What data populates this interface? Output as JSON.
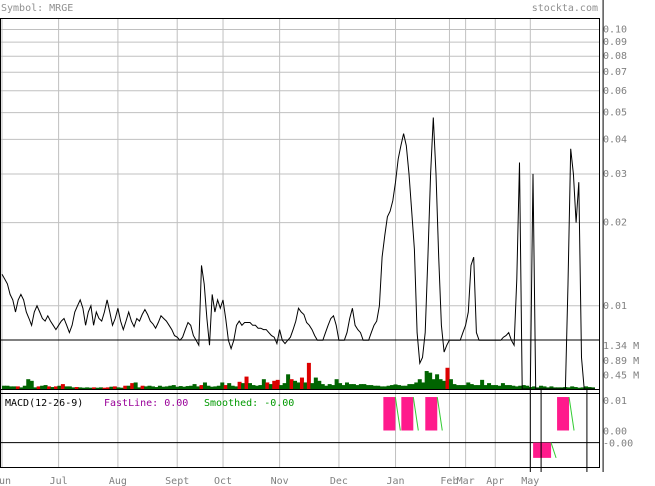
{
  "header": {
    "symbol_text": "Symbol: MRGE",
    "site_text": "stockta.com"
  },
  "colors": {
    "header_text": "#909090",
    "grid": "#c0c0c0",
    "frame": "#000000",
    "price_line": "#000000",
    "volume_up": "#006400",
    "volume_down": "#dd0000",
    "macd_fill": "#ff1a8c",
    "fast_label": "#990099",
    "smoothed_label": "#009900",
    "smoothed_line": "#33cc33"
  },
  "chart_data": [
    {
      "type": "line",
      "title": "",
      "yscale": "log",
      "ylim": [
        0.005,
        0.11
      ],
      "y_ticks": [
        "0.10",
        "0.09",
        "0.08",
        "0.07",
        "0.06",
        "0.05",
        "0.04",
        "0.03",
        "0.02",
        "0.01"
      ],
      "y_tick_values": [
        0.1,
        0.09,
        0.08,
        0.07,
        0.06,
        0.05,
        0.04,
        0.03,
        0.02,
        0.01
      ],
      "x_ticks": [
        "Jun",
        "Jul",
        "Aug",
        "Sept",
        "Oct",
        "Nov",
        "Dec",
        "Jan",
        "Feb",
        "Mar",
        "Apr",
        "May"
      ],
      "x_tick_positions": [
        0,
        21,
        43,
        65,
        82,
        103,
        125,
        146,
        166,
        172,
        183,
        196
      ],
      "grid": true,
      "series": [
        {
          "values": [
            0.013,
            0.0125,
            0.012,
            0.011,
            0.0105,
            0.0095,
            0.0105,
            0.011,
            0.0105,
            0.0095,
            0.009,
            0.0085,
            0.0095,
            0.01,
            0.0095,
            0.009,
            0.0088,
            0.0092,
            0.0088,
            0.0085,
            0.0082,
            0.0085,
            0.0088,
            0.009,
            0.0085,
            0.008,
            0.0085,
            0.0095,
            0.01,
            0.0105,
            0.0098,
            0.0085,
            0.0095,
            0.01,
            0.0085,
            0.0095,
            0.009,
            0.0088,
            0.0095,
            0.0105,
            0.0095,
            0.0085,
            0.009,
            0.0098,
            0.0088,
            0.0082,
            0.0088,
            0.0095,
            0.0088,
            0.0084,
            0.009,
            0.0088,
            0.0093,
            0.0097,
            0.0093,
            0.0088,
            0.0086,
            0.0083,
            0.0087,
            0.0092,
            0.009,
            0.0088,
            0.0085,
            0.0082,
            0.0078,
            0.0077,
            0.0075,
            0.0077,
            0.0082,
            0.0087,
            0.0085,
            0.0078,
            0.0075,
            0.0072,
            0.014,
            0.012,
            0.009,
            0.0072,
            0.011,
            0.0095,
            0.0105,
            0.0098,
            0.0105,
            0.009,
            0.0075,
            0.007,
            0.0075,
            0.0085,
            0.0088,
            0.0085,
            0.0087,
            0.0087,
            0.0087,
            0.0085,
            0.0085,
            0.0083,
            0.0083,
            0.0082,
            0.0082,
            0.008,
            0.0078,
            0.0077,
            0.0073,
            0.0082,
            0.0075,
            0.0073,
            0.0075,
            0.0077,
            0.0082,
            0.0088,
            0.0098,
            0.0095,
            0.0093,
            0.0087,
            0.0085,
            0.0082,
            0.0078,
            0.0075,
            0.0075,
            0.0075,
            0.008,
            0.0085,
            0.009,
            0.0092,
            0.0085,
            0.0075,
            0.0075,
            0.0075,
            0.008,
            0.009,
            0.0098,
            0.0085,
            0.0082,
            0.008,
            0.0075,
            0.0075,
            0.0075,
            0.008,
            0.0085,
            0.0088,
            0.01,
            0.015,
            0.018,
            0.021,
            0.022,
            0.024,
            0.028,
            0.034,
            0.038,
            0.042,
            0.038,
            0.03,
            0.022,
            0.016,
            0.008,
            0.0062,
            0.0065,
            0.008,
            0.015,
            0.03,
            0.048,
            0.03,
            0.015,
            0.0085,
            0.0068,
            0.0072,
            0.0075,
            0.0075,
            0.0075,
            0.0075,
            0.0075,
            0.008,
            0.0085,
            0.0095,
            0.014,
            0.015,
            0.008,
            0.0075,
            0.0075,
            0.0075,
            0.0075,
            0.0075,
            0.0075,
            0.0075,
            0.0075,
            0.0075,
            0.0077,
            0.0078,
            0.008,
            0.0075,
            0.0072,
            0.0125,
            0.033,
            0.005,
            0.005,
            0.005,
            0.005,
            0.03,
            0.005,
            0.005,
            0.005,
            0.005,
            0.005,
            0.005,
            0.005,
            0.005,
            0.005,
            0.005,
            0.005,
            0.005,
            0.012,
            0.037,
            0.03,
            0.02,
            0.028,
            0.0065,
            0.005,
            0.005,
            0.005,
            0.005,
            0.005
          ]
        }
      ]
    },
    {
      "type": "bar",
      "title": "",
      "y_ticks": [
        "1.34 M",
        "0.89 M",
        "0.45 M"
      ],
      "y_tick_values": [
        1.34,
        0.89,
        0.45
      ],
      "ylim": [
        0,
        1.5
      ],
      "unit": "M",
      "series": [
        {
          "values": [
            0.1,
            0.1,
            0.08,
            0.08,
            0.08,
            0.05,
            0.1,
            0.3,
            0.25,
            0.05,
            0.08,
            0.1,
            0.12,
            0.08,
            0.06,
            0.08,
            0.1,
            0.15,
            0.08,
            0.08,
            0.05,
            0.06,
            0.05,
            0.04,
            0.05,
            0.04,
            0.05,
            0.04,
            0.05,
            0.04,
            0.05,
            0.07,
            0.08,
            0.05,
            0.04,
            0.1,
            0.1,
            0.18,
            0.2,
            0.05,
            0.1,
            0.08,
            0.1,
            0.08,
            0.06,
            0.1,
            0.07,
            0.08,
            0.1,
            0.12,
            0.07,
            0.09,
            0.07,
            0.09,
            0.1,
            0.15,
            0.08,
            0.12,
            0.2,
            0.1,
            0.07,
            0.08,
            0.1,
            0.2,
            0.12,
            0.18,
            0.1,
            0.08,
            0.22,
            0.18,
            0.38,
            0.18,
            0.12,
            0.1,
            0.12,
            0.3,
            0.2,
            0.15,
            0.25,
            0.28,
            0.12,
            0.18,
            0.45,
            0.3,
            0.25,
            0.2,
            0.35,
            0.2,
            0.8,
            0.18,
            0.35,
            0.25,
            0.15,
            0.1,
            0.15,
            0.12,
            0.3,
            0.18,
            0.12,
            0.2,
            0.15,
            0.15,
            0.12,
            0.15,
            0.15,
            0.12,
            0.12,
            0.1,
            0.1,
            0.08,
            0.08,
            0.1,
            0.12,
            0.14,
            0.12,
            0.1,
            0.1,
            0.15,
            0.15,
            0.2,
            0.3,
            0.2,
            0.55,
            0.5,
            0.3,
            0.45,
            0.3,
            0.25,
            0.65,
            0.3,
            0.15,
            0.12,
            0.12,
            0.12,
            0.2,
            0.15,
            0.12,
            0.12,
            0.28,
            0.12,
            0.18,
            0.12,
            0.12,
            0.1,
            0.18,
            0.12,
            0.12,
            0.1,
            0.08,
            0.1,
            0.12,
            0.1,
            0.06,
            0.08,
            0.05,
            0.1,
            0.08,
            0.05,
            0.08,
            0.05,
            0.05,
            0.05,
            0.06,
            0.05,
            0.08,
            0.06,
            0.04,
            0.05,
            0.08,
            0.06,
            0.05
          ],
          "up": [
            1,
            1,
            1,
            1,
            0,
            1,
            1,
            1,
            1,
            1,
            0,
            1,
            1,
            0,
            1,
            0,
            1,
            0,
            1,
            1,
            1,
            0,
            1,
            1,
            1,
            1,
            0,
            1,
            1,
            0,
            0,
            1,
            0,
            1,
            1,
            0,
            1,
            0,
            1,
            1,
            0,
            1,
            1,
            1,
            1,
            1,
            1,
            1,
            1,
            1,
            1,
            1,
            1,
            1,
            1,
            1,
            1,
            0,
            1,
            1,
            1,
            1,
            1,
            1,
            0,
            1,
            1,
            1,
            0,
            1,
            0,
            1,
            1,
            1,
            1,
            1,
            0,
            1,
            0,
            0,
            1,
            1,
            1,
            0,
            1,
            1,
            0,
            1,
            0,
            1,
            1,
            1,
            1,
            1,
            1,
            1,
            1,
            1,
            1,
            1,
            1,
            1,
            1,
            1,
            1,
            1,
            1,
            1,
            1,
            1,
            1,
            1,
            1,
            1,
            1,
            1,
            1,
            1,
            1,
            1,
            1,
            1,
            1,
            1,
            1,
            1,
            1,
            1,
            0,
            1,
            1,
            1,
            1,
            1,
            1,
            1,
            1,
            1,
            1,
            1,
            1,
            1,
            1,
            1,
            1,
            1,
            1,
            1,
            1,
            1,
            1,
            1,
            1,
            1,
            1,
            1,
            1,
            1,
            1,
            1,
            1,
            1,
            1,
            1,
            1,
            1,
            1,
            1,
            1,
            1,
            1,
            1,
            1,
            1,
            1
          ]
        }
      ]
    },
    {
      "type": "area",
      "title": "MACD(12-26-9)",
      "fast_label": "FastLine: 0.00",
      "smoothed_label": "Smoothed: -0.00",
      "y_ticks": [
        "0.01",
        "0.00",
        "-0.00"
      ],
      "y_tick_values": [
        0.01,
        0.0,
        -0.004
      ],
      "ylim": [
        -0.012,
        0.012
      ],
      "segments": [
        {
          "start": 0.64,
          "end": 0.66,
          "value": 0.011
        },
        {
          "start": 0.67,
          "end": 0.69,
          "value": 0.011
        },
        {
          "start": 0.71,
          "end": 0.73,
          "value": 0.011
        },
        {
          "start": 0.89,
          "end": 0.92,
          "value": -0.009
        },
        {
          "start": 0.93,
          "end": 0.95,
          "value": 0.011
        }
      ]
    }
  ]
}
